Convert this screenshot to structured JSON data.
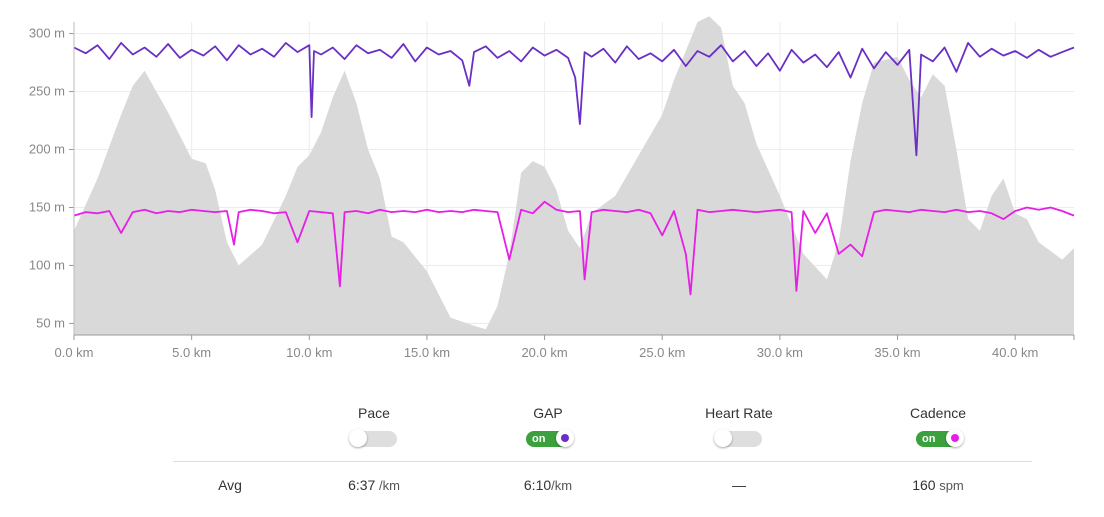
{
  "chart_data": {
    "type": "line",
    "x_unit": "km",
    "y_unit": "m",
    "xlim": [
      0,
      42.5
    ],
    "ylim": [
      40,
      310
    ],
    "x_ticks": [
      "0.0 km",
      "5.0 km",
      "10.0 km",
      "15.0 km",
      "20.0 km",
      "25.0 km",
      "30.0 km",
      "35.0 km",
      "40.0 km"
    ],
    "y_ticks": [
      "50 m",
      "100 m",
      "150 m",
      "200 m",
      "250 m",
      "300 m"
    ],
    "elevation": {
      "color": "#d9d9d9",
      "x": [
        0,
        1,
        2,
        2.5,
        3,
        4,
        5,
        5.6,
        6,
        6.5,
        7,
        8,
        9,
        9.5,
        10,
        10.5,
        11,
        11.5,
        12,
        12.5,
        13,
        13.5,
        14,
        15,
        15.5,
        16,
        17,
        17.5,
        18,
        18.5,
        19,
        19.5,
        20,
        20.5,
        21,
        21.5,
        22,
        23,
        24,
        25,
        25.5,
        26,
        26.5,
        27,
        27.5,
        28,
        28.5,
        29,
        30,
        31,
        32,
        32.5,
        33,
        33.5,
        34,
        35,
        35.5,
        36,
        36.5,
        37,
        37.5,
        38,
        38.5,
        39,
        39.5,
        40,
        40.5,
        41,
        42,
        42.5
      ],
      "y": [
        130,
        175,
        230,
        255,
        268,
        232,
        192,
        188,
        165,
        120,
        100,
        118,
        160,
        185,
        195,
        215,
        245,
        268,
        240,
        200,
        175,
        125,
        120,
        95,
        75,
        55,
        48,
        45,
        65,
        110,
        180,
        190,
        185,
        165,
        130,
        115,
        145,
        160,
        195,
        230,
        260,
        285,
        310,
        315,
        305,
        255,
        240,
        205,
        160,
        110,
        88,
        120,
        190,
        240,
        275,
        280,
        260,
        245,
        265,
        255,
        200,
        140,
        130,
        160,
        175,
        145,
        140,
        120,
        105,
        115
      ]
    },
    "series": [
      {
        "name": "GAP",
        "color": "#6a2fc4",
        "x": [
          0,
          0.5,
          1,
          1.5,
          2,
          2.5,
          3,
          3.5,
          4,
          4.5,
          5,
          5.5,
          6,
          6.5,
          7,
          7.5,
          8,
          8.5,
          9,
          9.5,
          10,
          10.1,
          10.2,
          10.5,
          11,
          11.5,
          12,
          12.5,
          13,
          13.5,
          14,
          14.5,
          15,
          15.5,
          16,
          16.5,
          16.8,
          17,
          17.5,
          18,
          18.5,
          19,
          19.5,
          20,
          20.5,
          21,
          21.3,
          21.5,
          21.7,
          22,
          22.5,
          23,
          23.5,
          24,
          24.5,
          25,
          25.5,
          26,
          26.5,
          27,
          27.5,
          28,
          28.5,
          29,
          29.5,
          30,
          30.5,
          31,
          31.5,
          32,
          32.5,
          33,
          33.5,
          34,
          34.5,
          35,
          35.5,
          35.8,
          36,
          36.5,
          37,
          37.5,
          38,
          38.5,
          39,
          39.5,
          40,
          40.5,
          41,
          41.5,
          42,
          42.5
        ],
        "y": [
          288,
          283,
          290,
          278,
          292,
          282,
          288,
          280,
          291,
          279,
          286,
          281,
          289,
          277,
          290,
          282,
          287,
          280,
          292,
          284,
          290,
          228,
          285,
          282,
          288,
          278,
          290,
          283,
          286,
          279,
          291,
          276,
          288,
          282,
          285,
          277,
          255,
          284,
          289,
          279,
          285,
          276,
          288,
          281,
          286,
          279,
          262,
          222,
          284,
          280,
          287,
          275,
          289,
          278,
          283,
          276,
          286,
          272,
          285,
          280,
          290,
          276,
          285,
          272,
          283,
          268,
          286,
          275,
          282,
          271,
          284,
          262,
          287,
          270,
          284,
          273,
          286,
          195,
          282,
          276,
          288,
          267,
          292,
          280,
          287,
          281,
          285,
          279,
          286,
          280,
          284,
          288
        ]
      },
      {
        "name": "Cadence",
        "color": "#e61ee6",
        "x": [
          0,
          0.5,
          1,
          1.5,
          2,
          2.5,
          3,
          3.5,
          4,
          4.5,
          5,
          5.5,
          6,
          6.5,
          6.8,
          7,
          7.5,
          8,
          8.5,
          9,
          9.5,
          10,
          10.5,
          11,
          11.3,
          11.5,
          12,
          12.5,
          13,
          13.5,
          14,
          14.5,
          15,
          15.5,
          16,
          16.5,
          17,
          17.5,
          18,
          18.5,
          19,
          19.5,
          20,
          20.5,
          21,
          21.5,
          21.7,
          22,
          22.5,
          23,
          23.5,
          24,
          24.5,
          25,
          25.5,
          26,
          26.2,
          26.5,
          27,
          27.5,
          28,
          28.5,
          29,
          29.5,
          30,
          30.5,
          30.7,
          31,
          31.5,
          32,
          32.5,
          33,
          33.5,
          34,
          34.5,
          35,
          35.5,
          36,
          36.5,
          37,
          37.5,
          38,
          38.5,
          39,
          39.5,
          40,
          40.5,
          41,
          41.5,
          42,
          42.5
        ],
        "y": [
          143,
          146,
          145,
          147,
          128,
          146,
          148,
          145,
          147,
          146,
          148,
          147,
          146,
          147,
          118,
          146,
          148,
          147,
          145,
          146,
          120,
          147,
          146,
          145,
          82,
          146,
          147,
          145,
          148,
          146,
          147,
          146,
          148,
          146,
          147,
          146,
          148,
          147,
          146,
          105,
          148,
          145,
          155,
          148,
          146,
          147,
          88,
          146,
          148,
          147,
          146,
          148,
          145,
          126,
          147,
          110,
          75,
          148,
          146,
          147,
          148,
          147,
          146,
          147,
          148,
          146,
          78,
          147,
          128,
          145,
          110,
          118,
          108,
          146,
          148,
          147,
          146,
          148,
          147,
          146,
          148,
          146,
          147,
          145,
          140,
          147,
          150,
          148,
          150,
          147,
          143
        ]
      }
    ]
  },
  "toggles": [
    {
      "label": "Pace",
      "state": "off"
    },
    {
      "label": "GAP",
      "state": "on",
      "on_text": "on",
      "dot_color": "#6a2fc4"
    },
    {
      "label": "Heart Rate",
      "state": "off"
    },
    {
      "label": "Cadence",
      "state": "on",
      "on_text": "on",
      "dot_color": "#e61ee6"
    }
  ],
  "avg": {
    "label": "Avg",
    "pace": {
      "value": "6:37",
      "unit": " /km"
    },
    "gap": {
      "value": "6:10",
      "unit": "/km"
    },
    "heart_rate": {
      "value": "—"
    },
    "cadence": {
      "value": "160",
      "unit": " spm"
    }
  }
}
